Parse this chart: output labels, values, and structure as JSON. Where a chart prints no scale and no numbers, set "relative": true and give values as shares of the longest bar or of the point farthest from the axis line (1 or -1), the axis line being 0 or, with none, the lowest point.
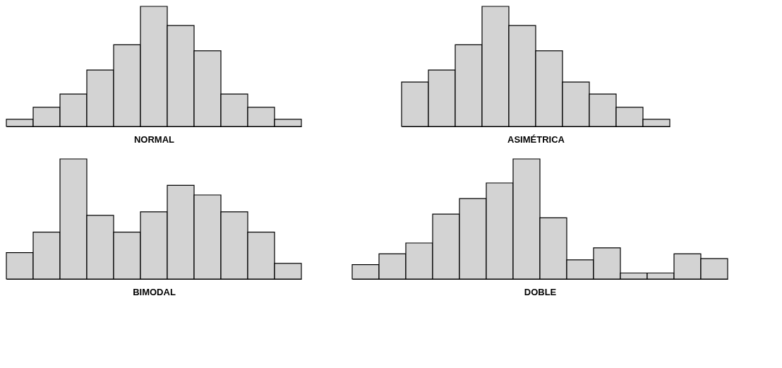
{
  "chart_data": [
    {
      "type": "bar",
      "relative": true,
      "xlabel": "NORMAL",
      "tick_labels": false,
      "color": "#d3d3d3",
      "categories": [
        null,
        null,
        null,
        null,
        null,
        null,
        null,
        null,
        null,
        null,
        null
      ],
      "values": [
        0.06,
        0.16,
        0.27,
        0.47,
        0.68,
        1,
        0.84,
        0.63,
        0.27,
        0.16,
        0.06
      ]
    },
    {
      "type": "bar",
      "relative": true,
      "xlabel": "ASIMÉTRICA",
      "tick_labels": false,
      "color": "#d3d3d3",
      "categories": [
        null,
        null,
        null,
        null,
        null,
        null,
        null,
        null,
        null,
        null
      ],
      "values": [
        0.37,
        0.47,
        0.68,
        1,
        0.84,
        0.63,
        0.37,
        0.27,
        0.16,
        0.06
      ]
    },
    {
      "type": "bar",
      "relative": true,
      "xlabel": "BIMODAL",
      "tick_labels": false,
      "color": "#d3d3d3",
      "categories": [
        null,
        null,
        null,
        null,
        null,
        null,
        null,
        null,
        null,
        null,
        null
      ],
      "values": [
        0.22,
        0.39,
        1,
        0.53,
        0.39,
        0.56,
        0.78,
        0.7,
        0.56,
        0.39,
        0.13
      ]
    },
    {
      "type": "bar",
      "relative": true,
      "xlabel": "DOBLE",
      "tick_labels": false,
      "color": "#d3d3d3",
      "categories": [
        null,
        null,
        null,
        null,
        null,
        null,
        null,
        null,
        null,
        null,
        null,
        null,
        null,
        null
      ],
      "values": [
        0.12,
        0.21,
        0.3,
        0.54,
        0.67,
        0.8,
        1,
        0.51,
        0.16,
        0.26,
        0.05,
        0.05,
        0.21,
        0.17
      ]
    }
  ]
}
